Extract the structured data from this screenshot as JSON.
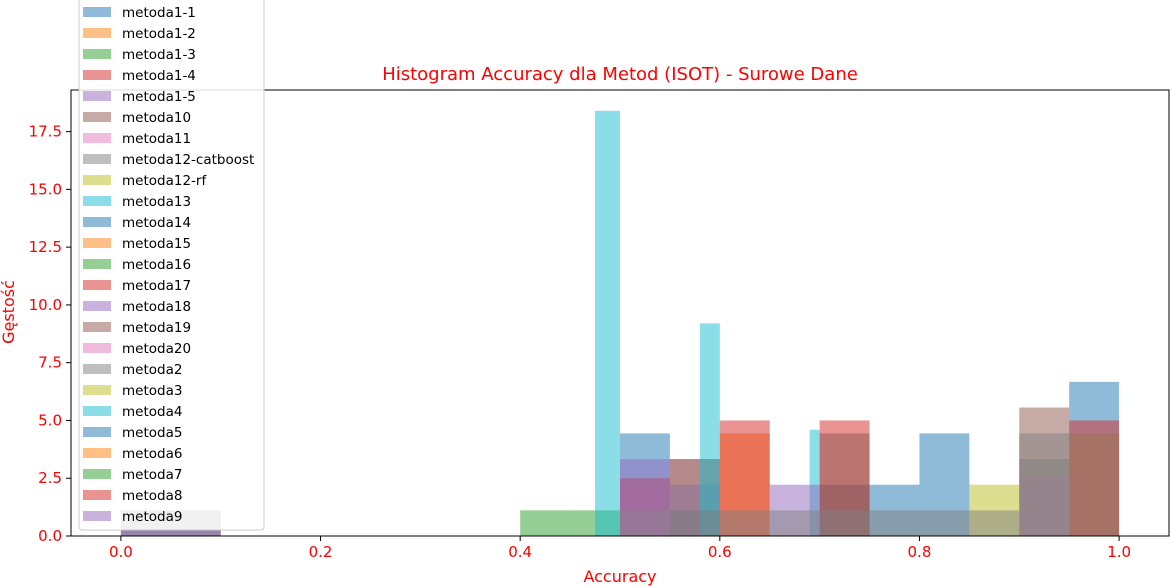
{
  "chart_data": {
    "type": "bar",
    "title": "Histogram Accuracy dla Metod (ISOT) - Surowe Dane",
    "xlabel": "Accuracy",
    "ylabel": "Gęstość",
    "xlim": [
      -0.05,
      1.05
    ],
    "ylim": [
      0,
      19.3
    ],
    "xticks": [
      0.0,
      0.2,
      0.4,
      0.6,
      0.8,
      1.0
    ],
    "xtick_labels": [
      "0.0",
      "0.2",
      "0.4",
      "0.6",
      "0.8",
      "1.0"
    ],
    "yticks": [
      0.0,
      2.5,
      5.0,
      7.5,
      10.0,
      12.5,
      15.0,
      17.5
    ],
    "ytick_labels": [
      "0.0",
      "2.5",
      "5.0",
      "7.5",
      "10.0",
      "12.5",
      "15.0",
      "17.5"
    ],
    "grid": false,
    "legend_position": "upper-left",
    "text_color": "#ff0000",
    "bar_opacity": 0.5,
    "series": [
      {
        "name": "metoda1-1",
        "color": "#1f77b4",
        "bars": [
          [
            0.5,
            0.55,
            4.44
          ],
          [
            0.55,
            0.6,
            1.11
          ],
          [
            0.7,
            0.75,
            2.22
          ],
          [
            0.75,
            0.8,
            2.22
          ],
          [
            0.95,
            1.0,
            6.67
          ]
        ]
      },
      {
        "name": "metoda1-2",
        "color": "#ff7f0e",
        "bars": [
          [
            0.6,
            0.65,
            4.44
          ],
          [
            0.95,
            1.0,
            4.44
          ]
        ]
      },
      {
        "name": "metoda1-3",
        "color": "#2ca02c",
        "bars": [
          [
            0.4,
            0.45,
            1.11
          ],
          [
            0.45,
            0.5,
            1.11
          ]
        ]
      },
      {
        "name": "metoda1-4",
        "color": "#d62728",
        "bars": [
          [
            0.5,
            0.55,
            2.5
          ],
          [
            0.55,
            0.6,
            3.33
          ],
          [
            0.6,
            0.65,
            5.0
          ],
          [
            0.7,
            0.75,
            5.0
          ],
          [
            0.95,
            1.0,
            5.0
          ]
        ]
      },
      {
        "name": "metoda1-5",
        "color": "#9467bd",
        "bars": [
          [
            0.55,
            0.6,
            2.22
          ]
        ]
      },
      {
        "name": "metoda10",
        "color": "#8c564b",
        "bars": [
          [
            0.9,
            0.95,
            5.56
          ]
        ]
      },
      {
        "name": "metoda11",
        "color": "#e377c2",
        "bars": [
          [
            0.5,
            0.55,
            1.11
          ],
          [
            0.9,
            0.95,
            2.5
          ]
        ]
      },
      {
        "name": "metoda12-catboost",
        "color": "#7f7f7f",
        "bars": [
          [
            0.0,
            0.1,
            1.11
          ],
          [
            0.55,
            0.6,
            3.33
          ],
          [
            0.9,
            0.95,
            4.44
          ]
        ]
      },
      {
        "name": "metoda12-rf",
        "color": "#bcbd22",
        "bars": [
          [
            0.85,
            0.9,
            2.22
          ]
        ]
      },
      {
        "name": "metoda13",
        "color": "#17becf",
        "bars": [
          [
            0.475,
            0.5,
            18.4
          ],
          [
            0.58,
            0.6,
            9.2
          ],
          [
            0.69,
            0.7,
            4.6
          ]
        ]
      },
      {
        "name": "metoda14",
        "color": "#1f77b4",
        "bars": [
          [
            0.8,
            0.85,
            4.44
          ]
        ]
      },
      {
        "name": "metoda15",
        "color": "#ff7f0e",
        "bars": []
      },
      {
        "name": "metoda16",
        "color": "#2ca02c",
        "bars": []
      },
      {
        "name": "metoda17",
        "color": "#d62728",
        "bars": []
      },
      {
        "name": "metoda18",
        "color": "#9467bd",
        "bars": [
          [
            0.5,
            0.55,
            3.33
          ],
          [
            0.65,
            0.7,
            2.22
          ]
        ]
      },
      {
        "name": "metoda19",
        "color": "#8c564b",
        "bars": [
          [
            0.7,
            0.75,
            4.44
          ]
        ]
      },
      {
        "name": "metoda20",
        "color": "#e377c2",
        "bars": []
      },
      {
        "name": "metoda2",
        "color": "#7f7f7f",
        "bars": [
          [
            0.0,
            0.1,
            1.11
          ],
          [
            0.5,
            0.55,
            1.11
          ],
          [
            0.55,
            0.6,
            1.11
          ],
          [
            0.6,
            0.65,
            1.11
          ],
          [
            0.65,
            0.7,
            1.11
          ],
          [
            0.7,
            0.75,
            1.11
          ],
          [
            0.75,
            0.8,
            1.11
          ],
          [
            0.8,
            0.85,
            1.11
          ],
          [
            0.85,
            0.9,
            1.11
          ],
          [
            0.9,
            0.95,
            3.33
          ],
          [
            0.95,
            1.0,
            4.44
          ]
        ]
      },
      {
        "name": "metoda3",
        "color": "#bcbd22",
        "bars": []
      },
      {
        "name": "metoda4",
        "color": "#17becf",
        "bars": []
      },
      {
        "name": "metoda5",
        "color": "#1f77b4",
        "bars": []
      },
      {
        "name": "metoda6",
        "color": "#ff7f0e",
        "bars": []
      },
      {
        "name": "metoda7",
        "color": "#2ca02c",
        "bars": []
      },
      {
        "name": "metoda8",
        "color": "#d62728",
        "bars": []
      },
      {
        "name": "metoda9",
        "color": "#9467bd",
        "bars": [
          [
            0.0,
            0.1,
            0.3
          ]
        ]
      }
    ]
  }
}
